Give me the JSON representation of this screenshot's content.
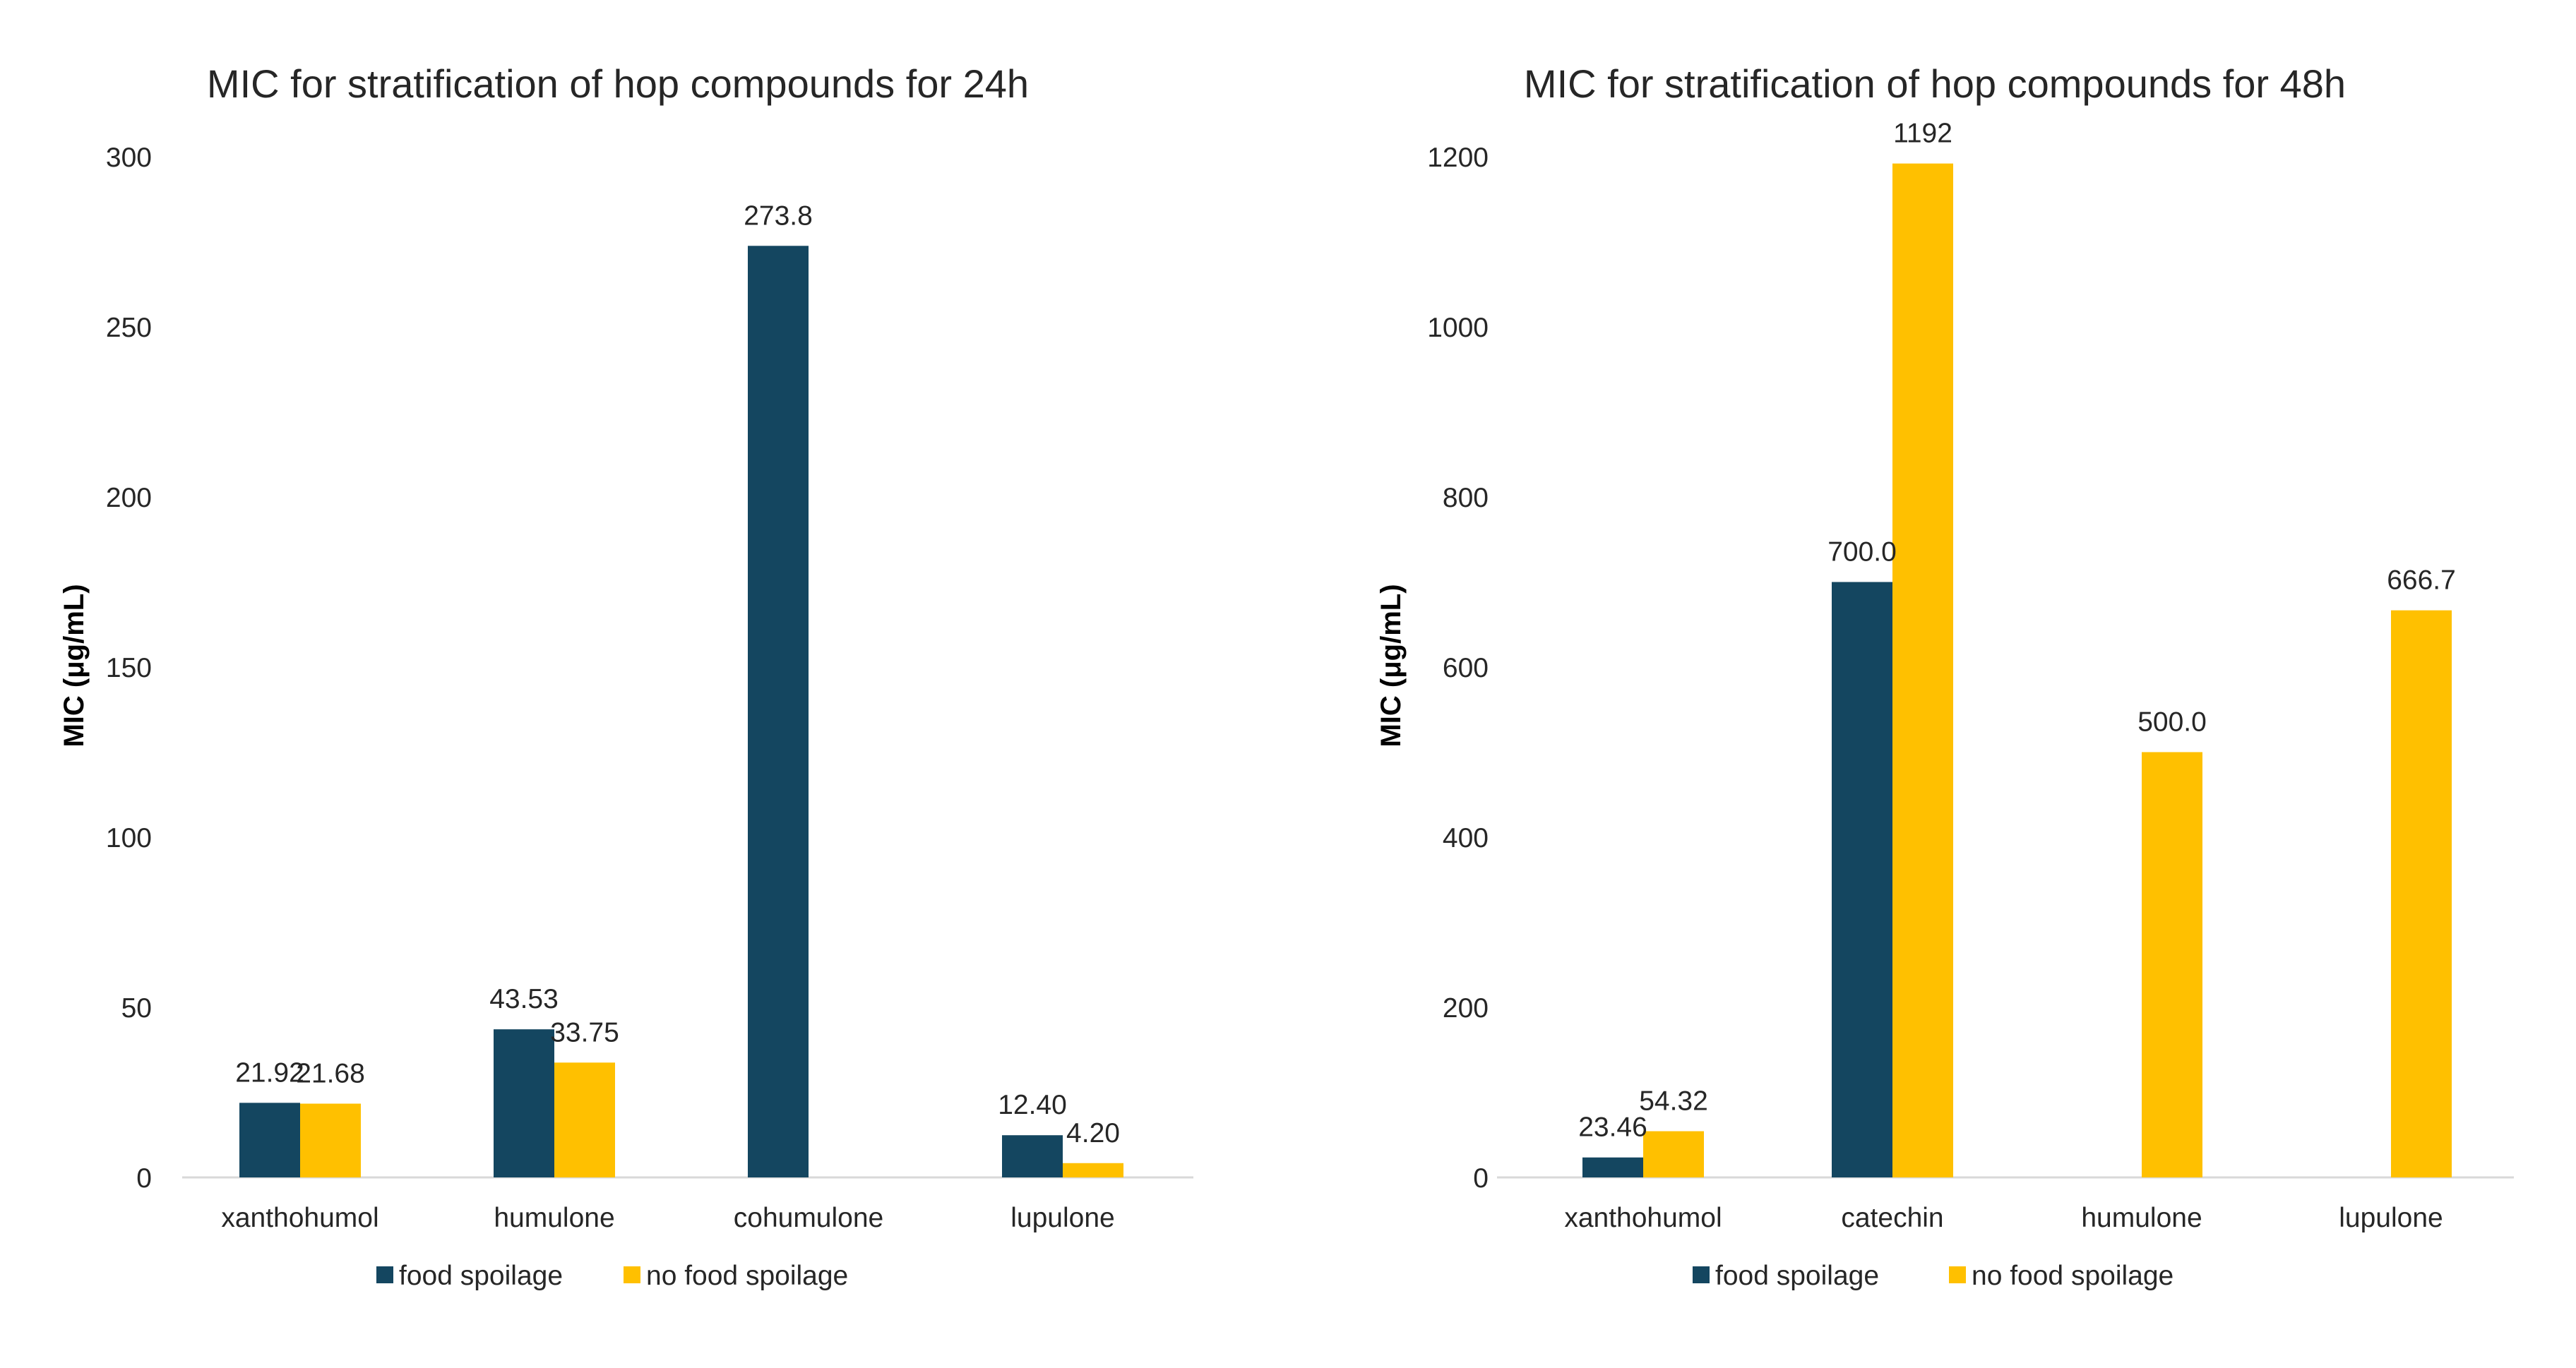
{
  "colors": {
    "food_spoilage": "#144660",
    "no_food_spoilage": "#ffc000"
  },
  "chart_data": [
    {
      "type": "bar",
      "title": "MIC for stratification of hop compounds for 24h",
      "xlabel": "",
      "ylabel": "MIC  (μg/mL)",
      "ylim": [
        0,
        300
      ],
      "yticks": [
        0,
        50,
        100,
        150,
        200,
        250,
        300
      ],
      "categories": [
        "xanthohumol",
        "humulone",
        "cohumulone",
        "lupulone"
      ],
      "series": [
        {
          "name": "food spoilage",
          "values": [
            21.92,
            43.53,
            273.8,
            12.4
          ],
          "labels": [
            "21.92",
            "43.53",
            "273.8",
            "12.40"
          ]
        },
        {
          "name": "no food spoilage",
          "values": [
            21.68,
            33.75,
            null,
            4.2
          ],
          "labels": [
            "21.68",
            "33.75",
            "",
            "4.20"
          ]
        }
      ],
      "legend": [
        "food spoilage",
        "no food spoilage"
      ],
      "legend_position": "bottom",
      "grid": false
    },
    {
      "type": "bar",
      "title": "MIC for stratification of hop compounds for 48h",
      "xlabel": "",
      "ylabel": "MIC  (μg/mL)",
      "ylim": [
        0,
        1200
      ],
      "yticks": [
        0,
        200,
        400,
        600,
        800,
        1000,
        1200
      ],
      "categories": [
        "xanthohumol",
        "catechin",
        "humulone",
        "lupulone"
      ],
      "series": [
        {
          "name": "food spoilage",
          "values": [
            23.46,
            700.0,
            null,
            null
          ],
          "labels": [
            "23.46",
            "700.0",
            "",
            ""
          ]
        },
        {
          "name": "no food spoilage",
          "values": [
            54.32,
            1192,
            500.0,
            666.7
          ],
          "labels": [
            "54.32",
            "1192",
            "500.0",
            "666.7"
          ]
        }
      ],
      "legend": [
        "food spoilage",
        "no food spoilage"
      ],
      "legend_position": "bottom",
      "grid": false
    }
  ]
}
